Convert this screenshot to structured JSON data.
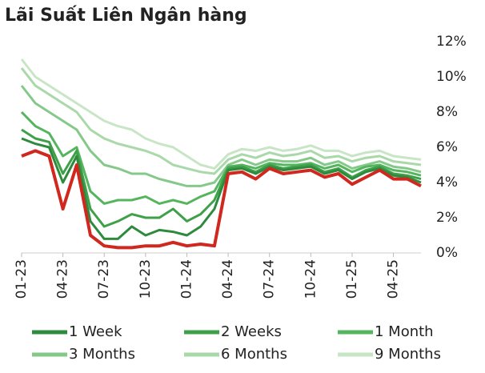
{
  "chart_data": {
    "type": "line",
    "title": "Lãi Suất Liên Ngân hàng",
    "categories": [
      "01-23",
      null,
      null,
      "04-23",
      null,
      null,
      "07-23",
      null,
      null,
      "10-23",
      null,
      null,
      "01-24",
      null,
      null,
      "04-24",
      null,
      null,
      "07-24",
      null,
      null,
      "10-24",
      null,
      null,
      "01-25",
      null,
      null,
      "04-25",
      null,
      null
    ],
    "ylim": [
      0,
      12
    ],
    "yticks": [
      {
        "value": 0,
        "label": "0%"
      },
      {
        "value": 2,
        "label": "2%"
      },
      {
        "value": 4,
        "label": "4%"
      },
      {
        "value": 6,
        "label": "6%"
      },
      {
        "value": 8,
        "label": "8%"
      },
      {
        "value": 10,
        "label": "10%"
      },
      {
        "value": 12,
        "label": "12%"
      }
    ],
    "series": [
      {
        "name": "9 Months",
        "color": "#c8e6c5",
        "values": [
          11.0,
          10.0,
          9.5,
          9.0,
          8.5,
          8.0,
          7.5,
          7.2,
          7.0,
          6.5,
          6.2,
          6.0,
          5.5,
          5.0,
          4.8,
          5.6,
          5.9,
          5.8,
          6.0,
          5.8,
          5.9,
          6.1,
          5.8,
          5.8,
          5.5,
          5.7,
          5.8,
          5.5,
          5.4,
          5.3
        ]
      },
      {
        "name": "6 Months",
        "color": "#a9d8a9",
        "values": [
          10.5,
          9.5,
          9.0,
          8.5,
          8.0,
          7.0,
          6.5,
          6.2,
          6.0,
          5.8,
          5.5,
          5.0,
          4.8,
          4.6,
          4.5,
          5.3,
          5.6,
          5.4,
          5.7,
          5.5,
          5.6,
          5.8,
          5.4,
          5.5,
          5.2,
          5.4,
          5.5,
          5.2,
          5.1,
          5.0
        ]
      },
      {
        "name": "3 Months",
        "color": "#85c98a",
        "values": [
          9.5,
          8.5,
          8.0,
          7.5,
          7.0,
          5.8,
          5.0,
          4.8,
          4.5,
          4.5,
          4.2,
          4.0,
          3.8,
          3.8,
          4.0,
          5.0,
          5.3,
          5.0,
          5.3,
          5.2,
          5.2,
          5.4,
          5.0,
          5.2,
          4.8,
          5.0,
          5.2,
          4.9,
          4.8,
          4.6
        ]
      },
      {
        "name": "1 Month",
        "color": "#55b55e",
        "values": [
          8.0,
          7.2,
          6.8,
          5.5,
          6.0,
          3.5,
          2.8,
          3.0,
          3.0,
          3.2,
          2.8,
          3.0,
          2.8,
          3.2,
          3.5,
          4.9,
          5.0,
          4.8,
          5.1,
          5.0,
          5.0,
          5.1,
          4.8,
          5.0,
          4.6,
          4.9,
          5.0,
          4.7,
          4.6,
          4.4
        ]
      },
      {
        "name": "2 Weeks",
        "color": "#3fa04a",
        "values": [
          7.0,
          6.5,
          6.3,
          4.5,
          5.8,
          2.5,
          1.5,
          1.8,
          2.2,
          2.0,
          2.0,
          2.5,
          1.8,
          2.2,
          3.0,
          4.8,
          4.9,
          4.6,
          5.0,
          4.8,
          4.9,
          5.0,
          4.6,
          4.8,
          4.3,
          4.7,
          4.9,
          4.5,
          4.4,
          4.2
        ]
      },
      {
        "name": "1 Week",
        "color": "#2e8b3e",
        "values": [
          6.5,
          6.2,
          6.0,
          4.0,
          5.5,
          1.8,
          0.8,
          0.8,
          1.5,
          1.0,
          1.3,
          1.2,
          1.0,
          1.5,
          2.5,
          4.7,
          4.8,
          4.5,
          4.9,
          4.7,
          4.8,
          4.9,
          4.5,
          4.7,
          4.2,
          4.6,
          4.8,
          4.4,
          4.3,
          4.0
        ]
      },
      {
        "color": "#d0281e",
        "values": [
          5.5,
          5.8,
          5.5,
          2.5,
          5.0,
          1.0,
          0.4,
          0.3,
          0.3,
          0.4,
          0.4,
          0.6,
          0.4,
          0.5,
          0.4,
          4.5,
          4.6,
          4.2,
          4.8,
          4.5,
          4.6,
          4.7,
          4.3,
          4.5,
          3.9,
          4.3,
          4.7,
          4.2,
          4.2,
          3.8
        ]
      }
    ]
  }
}
